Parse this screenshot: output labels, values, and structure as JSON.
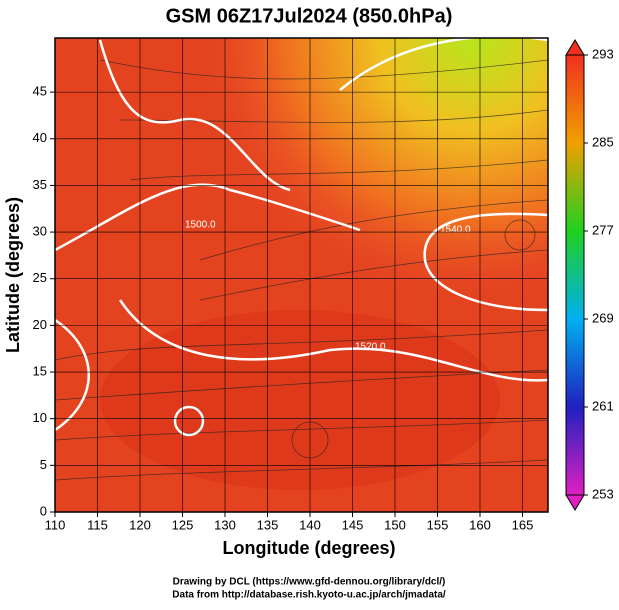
{
  "chart_data": {
    "type": "map",
    "title": "GSM 06Z17Jul2024 (850.0hPa)",
    "xlabel": "Longitude (degrees)",
    "ylabel": "Latitude  (degrees)",
    "xlim": [
      110,
      168
    ],
    "ylim": [
      0,
      50.8
    ],
    "xticks": [
      110,
      115,
      120,
      125,
      130,
      135,
      140,
      145,
      150,
      155,
      160,
      165
    ],
    "yticks": [
      0,
      5,
      10,
      15,
      20,
      25,
      30,
      35,
      40,
      45
    ],
    "grid": true,
    "clim": [
      253,
      293
    ],
    "cticks": [
      253,
      261,
      269,
      277,
      285,
      293
    ],
    "contour_labels": [
      "1520.0",
      "1540.0",
      "1500.0"
    ],
    "credits": [
      "Drawing by DCL (https://www.gfd-dennou.org/library/dcl/)",
      "Data from http://database.rish.kyoto-u.ac.jp/arch/jmadata/"
    ]
  }
}
